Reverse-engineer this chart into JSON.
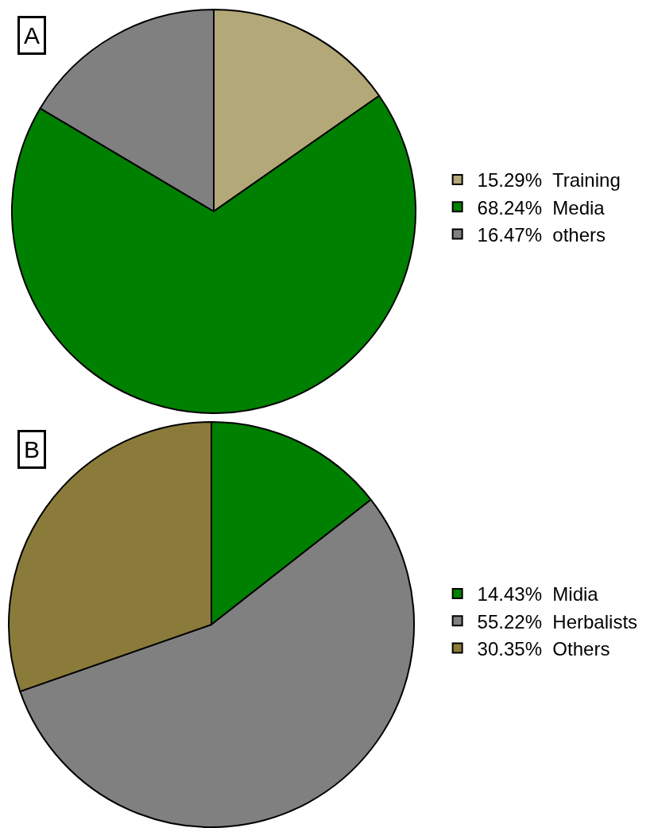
{
  "chart_data": [
    {
      "type": "pie",
      "title": "A",
      "categories": [
        "15.29%  Training",
        "68.24%  Media",
        "16.47%  others"
      ],
      "values": [
        15.29,
        68.24,
        16.47
      ],
      "colors": [
        "#b3a877",
        "#008000",
        "#808080"
      ],
      "legend": "right"
    },
    {
      "type": "pie",
      "title": "B",
      "categories": [
        "14.43%  Midia",
        "55.22%  Herbalists",
        "30.35%  Others"
      ],
      "values": [
        14.43,
        55.22,
        30.35
      ],
      "colors": [
        "#008000",
        "#808080",
        "#8b7b3a"
      ],
      "legend": "right"
    }
  ]
}
